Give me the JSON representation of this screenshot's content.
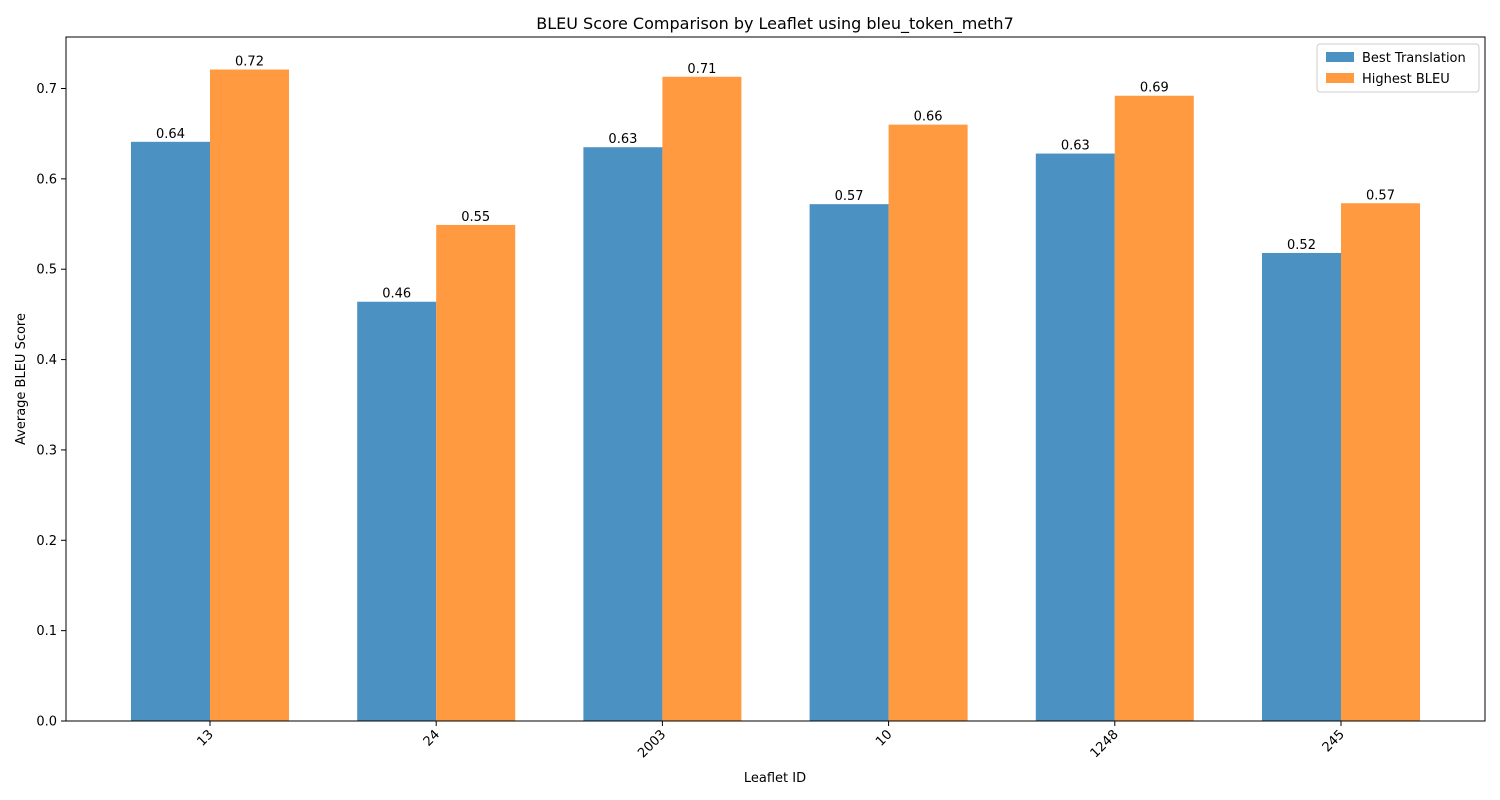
{
  "chart_data": {
    "type": "bar",
    "title": "BLEU Score Comparison by Leaflet using bleu_token_meth7",
    "xlabel": "Leaflet ID",
    "ylabel": "Average BLEU Score",
    "categories": [
      "13",
      "24",
      "2003",
      "10",
      "1248",
      "245"
    ],
    "ylim": [
      0,
      0.757
    ],
    "yticks": [
      0.0,
      0.1,
      0.2,
      0.3,
      0.4,
      0.5,
      0.6,
      0.7
    ],
    "ytick_labels": [
      "0.0",
      "0.1",
      "0.2",
      "0.3",
      "0.4",
      "0.5",
      "0.6",
      "0.7"
    ],
    "grid": false,
    "legend_position": "top-right",
    "series": [
      {
        "name": "Best Translation",
        "color": "#4b91c2",
        "values": [
          0.641,
          0.464,
          0.635,
          0.572,
          0.628,
          0.518
        ],
        "labels": [
          "0.64",
          "0.46",
          "0.63",
          "0.57",
          "0.63",
          "0.52"
        ]
      },
      {
        "name": "Highest BLEU",
        "color": "#ff9a40",
        "values": [
          0.721,
          0.549,
          0.713,
          0.66,
          0.692,
          0.573
        ],
        "labels": [
          "0.72",
          "0.55",
          "0.71",
          "0.66",
          "0.69",
          "0.57"
        ]
      }
    ]
  }
}
